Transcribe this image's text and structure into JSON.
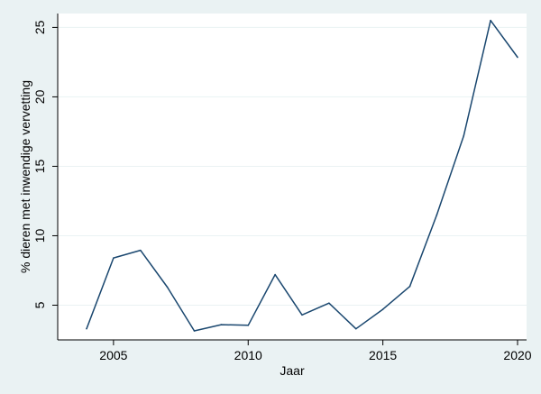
{
  "chart_data": {
    "type": "line",
    "xlabel": "Jaar",
    "ylabel": "% dieren met inwendige vervetting",
    "xlim": [
      2004,
      2020
    ],
    "ylim": [
      2.5,
      26
    ],
    "x_ticks": [
      2005,
      2010,
      2015,
      2020
    ],
    "y_ticks": [
      5,
      10,
      15,
      20,
      25
    ],
    "grid": true,
    "x": [
      2004,
      2005,
      2006,
      2007,
      2008,
      2009,
      2010,
      2011,
      2012,
      2013,
      2014,
      2015,
      2016,
      2017,
      2018,
      2019,
      2020
    ],
    "series": [
      {
        "values": [
          3.3,
          8.4,
          8.95,
          6.3,
          3.15,
          3.6,
          3.55,
          7.2,
          4.3,
          5.15,
          3.3,
          4.7,
          6.35,
          11.5,
          17.2,
          25.5,
          22.85
        ],
        "color": "#1a476f"
      }
    ]
  }
}
